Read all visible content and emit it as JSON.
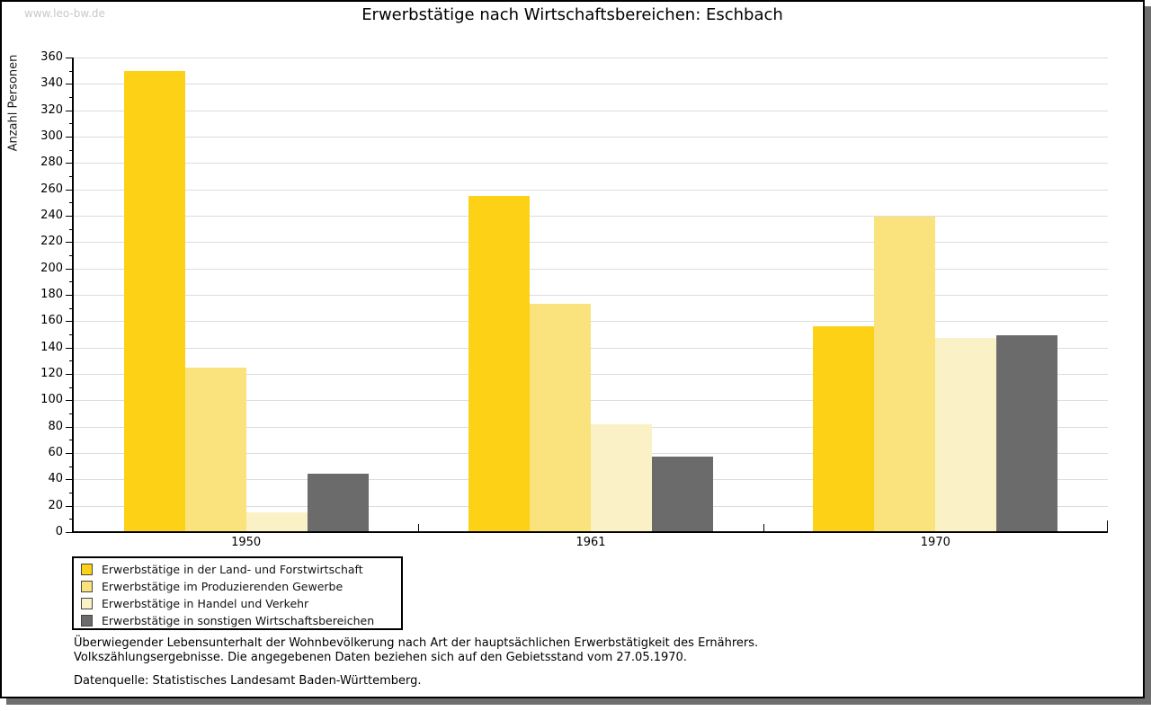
{
  "watermark": "www.leo-bw.de",
  "chart_data": {
    "type": "bar",
    "title": "Erwerbstätige nach Wirtschaftsbereichen: Eschbach",
    "ylabel": "Anzahl Personen",
    "xlabel": "",
    "categories": [
      "1950",
      "1961",
      "1970"
    ],
    "series": [
      {
        "name": "Erwerbstätige in der Land- und Forstwirtschaft",
        "color": "#FCD116",
        "values": [
          350,
          255,
          156
        ]
      },
      {
        "name": "Erwerbstätige im Produzierenden Gewerbe",
        "color": "#FAE37C",
        "values": [
          125,
          173,
          239
        ]
      },
      {
        "name": "Erwerbstätige in Handel und Verkehr",
        "color": "#FBF1C7",
        "values": [
          15,
          82,
          147
        ]
      },
      {
        "name": "Erwerbstätige in sonstigen Wirtschaftsbereichen",
        "color": "#6B6B6B",
        "values": [
          44,
          57,
          149
        ]
      }
    ],
    "ylim": [
      0,
      360
    ],
    "ytick_major": 20,
    "ytick_minor": 10,
    "grid": true,
    "legend_position": "bottom-left",
    "colors": {
      "gridline": "#DCDCDC",
      "axis": "#000000",
      "watermark": "#C8C8C8",
      "frame_shadow": "#6E6E6E"
    }
  },
  "footnotes": {
    "line1": "Überwiegender Lebensunterhalt der Wohnbevölkerung nach Art der hauptsächlichen Erwerbstätigkeit des Ernährers.",
    "line2": "Volkszählungsergebnisse. Die angegebenen Daten beziehen sich auf den Gebietsstand vom 27.05.1970.",
    "source": "Datenquelle: Statistisches Landesamt Baden-Württemberg."
  }
}
